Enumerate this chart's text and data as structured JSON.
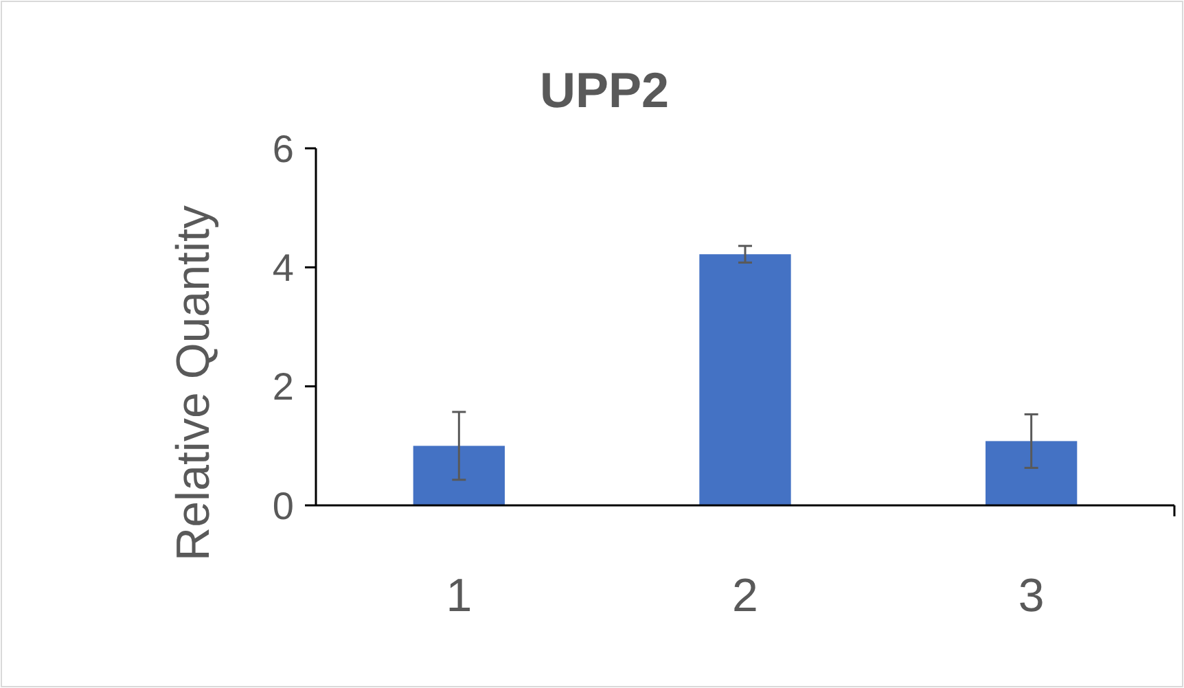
{
  "chart_data": {
    "type": "bar",
    "title": "UPP2",
    "ylabel": "Relative Quantity",
    "categories": [
      "1",
      "2",
      "3"
    ],
    "values": [
      1.0,
      4.22,
      1.08
    ],
    "errors": [
      0.57,
      0.14,
      0.45
    ],
    "color": "#4472c4",
    "ylim": [
      0,
      6
    ],
    "yticks": [
      0,
      2,
      4,
      6
    ],
    "grid": false
  }
}
